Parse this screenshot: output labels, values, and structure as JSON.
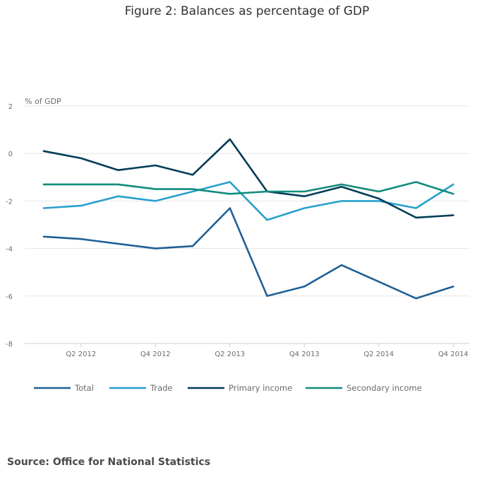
{
  "chart_data": {
    "type": "line",
    "title": "Figure 2: Balances as percentage of GDP",
    "ylabel": "% of GDP",
    "xlabel": "",
    "ylim": [
      -8,
      2
    ],
    "yticks": [
      2,
      0,
      -2,
      -4,
      -6,
      -8
    ],
    "x": [
      "Q1 2012",
      "Q2 2012",
      "Q3 2012",
      "Q4 2012",
      "Q1 2013",
      "Q2 2013",
      "Q3 2013",
      "Q4 2013",
      "Q1 2014",
      "Q2 2014",
      "Q3 2014",
      "Q4 2014"
    ],
    "xtick_labels": [
      "Q2 2012",
      "Q4 2012",
      "Q2 2013",
      "Q4 2013",
      "Q2 2014",
      "Q4 2014"
    ],
    "xtick_indices": [
      1,
      3,
      5,
      7,
      9,
      11
    ],
    "legend_position": "bottom",
    "grid": true,
    "series": [
      {
        "name": "Total",
        "color": "#206095",
        "values": [
          -3.5,
          -3.6,
          -3.8,
          -4.0,
          -3.9,
          -2.3,
          -6.0,
          -5.6,
          -4.7,
          -5.4,
          -6.1,
          -5.6
        ]
      },
      {
        "name": "Trade",
        "color": "#27a0cc",
        "values": [
          -2.3,
          -2.2,
          -1.8,
          -2.0,
          -1.6,
          -1.2,
          -2.8,
          -2.3,
          -2.0,
          -2.0,
          -2.3,
          -1.3
        ]
      },
      {
        "name": "Primary income",
        "color": "#003c57",
        "values": [
          0.1,
          -0.2,
          -0.7,
          -0.5,
          -0.9,
          0.6,
          -1.6,
          -1.8,
          -1.4,
          -1.9,
          -2.7,
          -2.6
        ]
      },
      {
        "name": "Secondary income",
        "color": "#118c7b",
        "values": [
          -1.3,
          -1.3,
          -1.3,
          -1.5,
          -1.5,
          -1.7,
          -1.6,
          -1.6,
          -1.3,
          -1.6,
          -1.2,
          -1.7
        ]
      }
    ]
  },
  "source": "Source: Office for National Statistics"
}
